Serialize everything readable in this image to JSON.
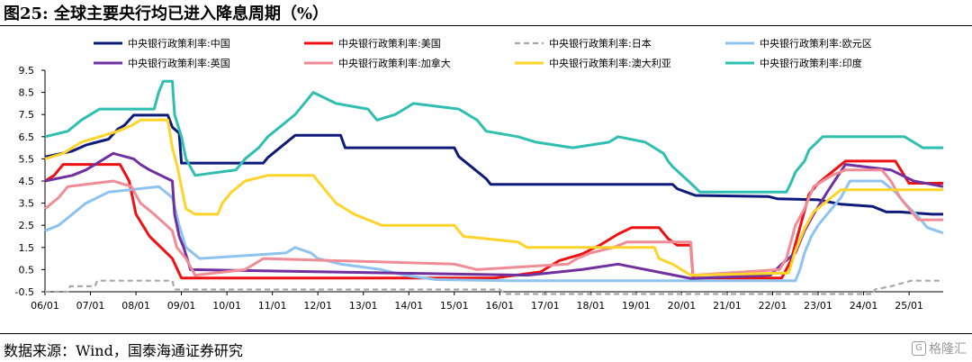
{
  "header": {
    "title": "图25: 全球主要央行均已进入降息周期（%）"
  },
  "footer": {
    "source": "数据来源：Wind，国泰海通证券研究",
    "watermark": "格隆汇"
  },
  "chart_data": {
    "type": "line",
    "xlabel": "",
    "ylabel": "",
    "x_tick_labels": [
      "06/01",
      "07/01",
      "08/01",
      "09/01",
      "10/01",
      "11/01",
      "12/01",
      "13/01",
      "14/01",
      "15/01",
      "16/01",
      "17/01",
      "18/01",
      "19/01",
      "20/01",
      "21/01",
      "22/01",
      "23/01",
      "24/01",
      "25/01"
    ],
    "y_ticks": [
      -0.5,
      0.5,
      1.5,
      2.5,
      3.5,
      4.5,
      5.5,
      6.5,
      7.5,
      8.5,
      9.5
    ],
    "y_tick_labels": [
      "-0.5",
      "0.5",
      "1.5",
      "2.5",
      "3.5",
      "4.5",
      "5.5",
      "6.5",
      "7.5",
      "8.5",
      "9.5"
    ],
    "xlim": [
      2006.0,
      2025.75
    ],
    "ylim": [
      -0.5,
      9.5
    ],
    "grid": false,
    "legend_position": "top",
    "series": [
      {
        "name": "中央银行政策利率:中国",
        "color": "#0e1a7a",
        "points": [
          [
            2006.0,
            5.58
          ],
          [
            2006.6,
            5.85
          ],
          [
            2006.9,
            6.12
          ],
          [
            2007.4,
            6.39
          ],
          [
            2007.6,
            6.84
          ],
          [
            2007.75,
            7.02
          ],
          [
            2007.95,
            7.47
          ],
          [
            2008.7,
            7.47
          ],
          [
            2008.8,
            6.93
          ],
          [
            2008.95,
            6.66
          ],
          [
            2009.0,
            5.31
          ],
          [
            2010.8,
            5.31
          ],
          [
            2010.9,
            5.56
          ],
          [
            2011.2,
            6.06
          ],
          [
            2011.5,
            6.56
          ],
          [
            2012.5,
            6.56
          ],
          [
            2012.6,
            6.0
          ],
          [
            2015.0,
            6.0
          ],
          [
            2015.1,
            5.6
          ],
          [
            2015.4,
            5.1
          ],
          [
            2015.7,
            4.6
          ],
          [
            2015.8,
            4.35
          ],
          [
            2019.8,
            4.35
          ],
          [
            2019.9,
            4.15
          ],
          [
            2020.3,
            3.85
          ],
          [
            2021.9,
            3.8
          ],
          [
            2022.1,
            3.7
          ],
          [
            2023.0,
            3.65
          ],
          [
            2023.5,
            3.45
          ],
          [
            2024.2,
            3.35
          ],
          [
            2024.5,
            3.1
          ],
          [
            2024.8,
            3.1
          ],
          [
            2025.5,
            3.0
          ],
          [
            2025.75,
            3.0
          ]
        ]
      },
      {
        "name": "中央银行政策利率:美国",
        "color": "#ee1111",
        "points": [
          [
            2006.0,
            4.5
          ],
          [
            2006.2,
            4.75
          ],
          [
            2006.4,
            5.25
          ],
          [
            2007.65,
            5.25
          ],
          [
            2007.85,
            4.5
          ],
          [
            2008.0,
            3.0
          ],
          [
            2008.3,
            2.0
          ],
          [
            2008.8,
            1.0
          ],
          [
            2009.0,
            0.12
          ],
          [
            2015.9,
            0.12
          ],
          [
            2016.9,
            0.4
          ],
          [
            2017.3,
            0.9
          ],
          [
            2017.8,
            1.2
          ],
          [
            2018.2,
            1.6
          ],
          [
            2018.6,
            2.1
          ],
          [
            2018.9,
            2.4
          ],
          [
            2019.5,
            2.4
          ],
          [
            2019.7,
            1.9
          ],
          [
            2019.9,
            1.6
          ],
          [
            2020.2,
            1.6
          ],
          [
            2020.25,
            0.12
          ],
          [
            2022.2,
            0.12
          ],
          [
            2022.4,
            0.9
          ],
          [
            2022.6,
            2.4
          ],
          [
            2022.8,
            3.9
          ],
          [
            2023.0,
            4.4
          ],
          [
            2023.3,
            4.9
          ],
          [
            2023.6,
            5.4
          ],
          [
            2024.7,
            5.4
          ],
          [
            2024.85,
            4.9
          ],
          [
            2025.0,
            4.4
          ],
          [
            2025.75,
            4.4
          ]
        ]
      },
      {
        "name": "中央银行政策利率:日本",
        "color": "#a8a8a8",
        "dashed": true,
        "points": [
          [
            2006.0,
            -0.5
          ],
          [
            2006.5,
            -0.5
          ],
          [
            2006.55,
            -0.25
          ],
          [
            2007.1,
            -0.25
          ],
          [
            2007.15,
            0.0
          ],
          [
            2008.8,
            0.0
          ],
          [
            2008.85,
            -0.4
          ],
          [
            2016.0,
            -0.4
          ],
          [
            2016.1,
            -0.6
          ],
          [
            2024.2,
            -0.6
          ],
          [
            2024.25,
            -0.4
          ],
          [
            2024.6,
            -0.25
          ],
          [
            2025.05,
            0.0
          ],
          [
            2025.75,
            0.0
          ]
        ]
      },
      {
        "name": "中央银行政策利率:欧元区",
        "color": "#8fc3ef",
        "points": [
          [
            2006.0,
            2.25
          ],
          [
            2006.3,
            2.5
          ],
          [
            2006.6,
            3.0
          ],
          [
            2006.9,
            3.5
          ],
          [
            2007.4,
            4.0
          ],
          [
            2008.5,
            4.25
          ],
          [
            2008.8,
            3.75
          ],
          [
            2008.95,
            2.5
          ],
          [
            2009.1,
            1.5
          ],
          [
            2009.4,
            1.0
          ],
          [
            2011.3,
            1.25
          ],
          [
            2011.5,
            1.5
          ],
          [
            2011.85,
            1.25
          ],
          [
            2012.0,
            1.0
          ],
          [
            2012.5,
            0.75
          ],
          [
            2013.4,
            0.5
          ],
          [
            2013.9,
            0.25
          ],
          [
            2014.6,
            0.05
          ],
          [
            2016.2,
            0.0
          ],
          [
            2022.5,
            0.0
          ],
          [
            2022.6,
            0.5
          ],
          [
            2022.7,
            1.25
          ],
          [
            2022.85,
            2.0
          ],
          [
            2023.0,
            2.5
          ],
          [
            2023.2,
            3.0
          ],
          [
            2023.5,
            3.75
          ],
          [
            2023.7,
            4.5
          ],
          [
            2024.4,
            4.5
          ],
          [
            2024.7,
            4.0
          ],
          [
            2024.95,
            3.4
          ],
          [
            2025.2,
            2.9
          ],
          [
            2025.4,
            2.4
          ],
          [
            2025.75,
            2.15
          ]
        ]
      },
      {
        "name": "中央银行政策利率:英国",
        "color": "#7030a0",
        "points": [
          [
            2006.0,
            4.5
          ],
          [
            2006.6,
            4.75
          ],
          [
            2006.9,
            5.0
          ],
          [
            2007.1,
            5.25
          ],
          [
            2007.5,
            5.75
          ],
          [
            2007.95,
            5.5
          ],
          [
            2008.1,
            5.25
          ],
          [
            2008.3,
            5.0
          ],
          [
            2008.8,
            4.5
          ],
          [
            2008.85,
            3.0
          ],
          [
            2008.95,
            2.0
          ],
          [
            2009.05,
            1.5
          ],
          [
            2009.2,
            0.5
          ],
          [
            2016.6,
            0.25
          ],
          [
            2017.8,
            0.5
          ],
          [
            2018.6,
            0.75
          ],
          [
            2020.2,
            0.1
          ],
          [
            2021.95,
            0.25
          ],
          [
            2022.2,
            0.75
          ],
          [
            2022.5,
            1.25
          ],
          [
            2022.7,
            2.25
          ],
          [
            2022.9,
            3.0
          ],
          [
            2023.2,
            4.0
          ],
          [
            2023.6,
            5.25
          ],
          [
            2024.6,
            5.0
          ],
          [
            2024.85,
            4.75
          ],
          [
            2025.1,
            4.5
          ],
          [
            2025.75,
            4.25
          ]
        ]
      },
      {
        "name": "中央银行政策利率:加拿大",
        "color": "#f08c96",
        "points": [
          [
            2006.0,
            3.25
          ],
          [
            2006.3,
            3.75
          ],
          [
            2006.5,
            4.25
          ],
          [
            2007.5,
            4.5
          ],
          [
            2007.9,
            4.25
          ],
          [
            2008.1,
            3.5
          ],
          [
            2008.4,
            3.0
          ],
          [
            2008.8,
            2.25
          ],
          [
            2008.9,
            1.5
          ],
          [
            2009.1,
            1.0
          ],
          [
            2009.3,
            0.25
          ],
          [
            2010.4,
            0.5
          ],
          [
            2010.6,
            0.75
          ],
          [
            2010.8,
            1.0
          ],
          [
            2015.0,
            0.75
          ],
          [
            2015.5,
            0.5
          ],
          [
            2017.5,
            0.75
          ],
          [
            2017.7,
            1.0
          ],
          [
            2018.0,
            1.25
          ],
          [
            2018.5,
            1.5
          ],
          [
            2018.8,
            1.75
          ],
          [
            2020.2,
            1.75
          ],
          [
            2020.25,
            0.25
          ],
          [
            2022.15,
            0.5
          ],
          [
            2022.3,
            1.0
          ],
          [
            2022.5,
            2.5
          ],
          [
            2022.7,
            3.25
          ],
          [
            2022.9,
            4.25
          ],
          [
            2023.3,
            4.75
          ],
          [
            2023.6,
            5.0
          ],
          [
            2024.4,
            5.0
          ],
          [
            2024.6,
            4.5
          ],
          [
            2024.8,
            3.75
          ],
          [
            2025.0,
            3.25
          ],
          [
            2025.2,
            2.75
          ],
          [
            2025.75,
            2.75
          ]
        ]
      },
      {
        "name": "中央银行政策利率:澳大利亚",
        "color": "#ffd42a",
        "points": [
          [
            2006.0,
            5.5
          ],
          [
            2006.4,
            5.75
          ],
          [
            2006.8,
            6.25
          ],
          [
            2007.6,
            6.75
          ],
          [
            2007.9,
            7.0
          ],
          [
            2008.1,
            7.25
          ],
          [
            2008.7,
            7.25
          ],
          [
            2008.8,
            6.0
          ],
          [
            2008.9,
            5.25
          ],
          [
            2009.0,
            4.25
          ],
          [
            2009.1,
            3.25
          ],
          [
            2009.3,
            3.0
          ],
          [
            2009.8,
            3.0
          ],
          [
            2009.9,
            3.5
          ],
          [
            2010.1,
            4.0
          ],
          [
            2010.4,
            4.5
          ],
          [
            2010.9,
            4.75
          ],
          [
            2011.9,
            4.75
          ],
          [
            2012.1,
            4.25
          ],
          [
            2012.4,
            3.5
          ],
          [
            2012.8,
            3.0
          ],
          [
            2013.4,
            2.5
          ],
          [
            2015.0,
            2.5
          ],
          [
            2015.2,
            2.0
          ],
          [
            2016.4,
            1.75
          ],
          [
            2016.6,
            1.5
          ],
          [
            2019.4,
            1.5
          ],
          [
            2019.5,
            1.0
          ],
          [
            2019.8,
            0.75
          ],
          [
            2020.2,
            0.25
          ],
          [
            2022.35,
            0.35
          ],
          [
            2022.5,
            1.35
          ],
          [
            2022.7,
            2.35
          ],
          [
            2022.9,
            3.1
          ],
          [
            2023.2,
            3.6
          ],
          [
            2023.5,
            4.1
          ],
          [
            2025.75,
            4.1
          ]
        ]
      },
      {
        "name": "中央银行政策利率:印度",
        "color": "#2ebfb0",
        "points": [
          [
            2006.0,
            6.5
          ],
          [
            2006.5,
            6.75
          ],
          [
            2006.8,
            7.25
          ],
          [
            2007.2,
            7.75
          ],
          [
            2008.4,
            7.75
          ],
          [
            2008.5,
            8.5
          ],
          [
            2008.6,
            9.0
          ],
          [
            2008.8,
            9.0
          ],
          [
            2008.85,
            7.5
          ],
          [
            2009.0,
            6.5
          ],
          [
            2009.1,
            5.5
          ],
          [
            2009.3,
            4.75
          ],
          [
            2010.2,
            5.0
          ],
          [
            2010.4,
            5.5
          ],
          [
            2010.7,
            6.0
          ],
          [
            2010.9,
            6.5
          ],
          [
            2011.2,
            7.0
          ],
          [
            2011.5,
            7.5
          ],
          [
            2011.7,
            8.0
          ],
          [
            2011.9,
            8.5
          ],
          [
            2012.4,
            8.0
          ],
          [
            2013.1,
            7.75
          ],
          [
            2013.3,
            7.25
          ],
          [
            2013.7,
            7.5
          ],
          [
            2013.9,
            7.75
          ],
          [
            2014.1,
            8.0
          ],
          [
            2015.1,
            7.75
          ],
          [
            2015.3,
            7.5
          ],
          [
            2015.5,
            7.25
          ],
          [
            2015.7,
            6.75
          ],
          [
            2016.4,
            6.5
          ],
          [
            2016.8,
            6.25
          ],
          [
            2017.6,
            6.0
          ],
          [
            2018.4,
            6.25
          ],
          [
            2018.6,
            6.5
          ],
          [
            2019.2,
            6.25
          ],
          [
            2019.4,
            6.0
          ],
          [
            2019.6,
            5.75
          ],
          [
            2019.7,
            5.4
          ],
          [
            2019.8,
            5.15
          ],
          [
            2020.2,
            4.4
          ],
          [
            2020.4,
            4.0
          ],
          [
            2022.3,
            4.0
          ],
          [
            2022.4,
            4.4
          ],
          [
            2022.5,
            4.9
          ],
          [
            2022.7,
            5.4
          ],
          [
            2022.8,
            5.9
          ],
          [
            2023.1,
            6.5
          ],
          [
            2024.9,
            6.5
          ],
          [
            2025.1,
            6.25
          ],
          [
            2025.3,
            6.0
          ],
          [
            2025.75,
            6.0
          ]
        ]
      }
    ]
  }
}
